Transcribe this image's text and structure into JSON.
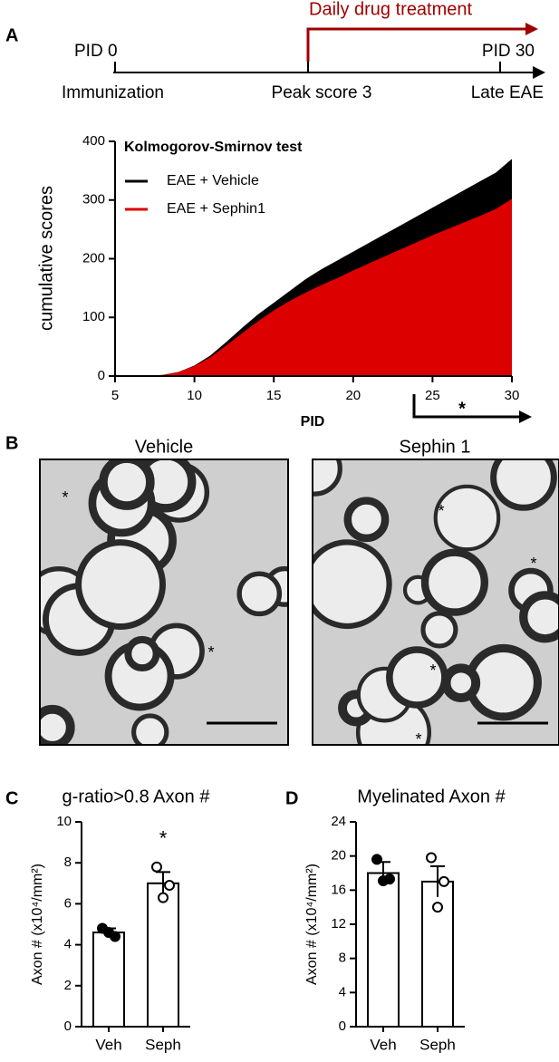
{
  "panels": [
    "A",
    "B",
    "C",
    "D"
  ],
  "timeline": {
    "start_label": "PID 0",
    "end_label": "PID 30",
    "events": [
      "Immunization",
      "Peak score 3",
      "Late EAE"
    ],
    "treatment": "Daily drug treatment"
  },
  "micrographs": [
    {
      "title": "Vehicle",
      "marks": [
        "*",
        "*"
      ]
    },
    {
      "title": "Sephin 1",
      "marks": [
        "*",
        "*",
        "*",
        "*"
      ]
    }
  ],
  "chart_data": [
    {
      "type": "area",
      "title": "Kolmogorov-Smirnov test",
      "x_label": "PID",
      "y_label": "cumulative scores",
      "annotation": "*",
      "x": [
        5,
        6,
        7,
        8,
        9,
        10,
        11,
        12,
        13,
        14,
        15,
        16,
        17,
        18,
        19,
        20,
        21,
        22,
        23,
        24,
        25,
        26,
        27,
        28,
        29,
        30
      ],
      "series": [
        {
          "name": "EAE + Vehicle",
          "color": "#000000",
          "values": [
            0,
            0,
            0,
            2,
            7,
            18,
            35,
            58,
            82,
            105,
            125,
            145,
            165,
            182,
            197,
            212,
            227,
            242,
            257,
            272,
            287,
            302,
            317,
            332,
            347,
            370
          ]
        },
        {
          "name": "EAE + Sephin1",
          "color": "#dd0000",
          "values": [
            0,
            0,
            0,
            2,
            7,
            17,
            32,
            52,
            73,
            93,
            112,
            128,
            142,
            155,
            167,
            180,
            192,
            204,
            216,
            228,
            240,
            251,
            262,
            273,
            285,
            302
          ]
        }
      ],
      "xlim": [
        5,
        30
      ],
      "xticks": [
        5,
        10,
        15,
        20,
        25,
        30
      ],
      "ylim": [
        0,
        400
      ],
      "yticks": [
        0,
        100,
        200,
        300,
        400
      ]
    },
    {
      "type": "bar",
      "title": "g-ratio>0.8 Axon #",
      "y_label": "Axon # (x10⁴/mm²)",
      "annotation": "*",
      "categories": [
        "Veh",
        "Seph"
      ],
      "values": [
        4.6,
        7.0
      ],
      "errors": [
        0.2,
        0.55
      ],
      "points": [
        [
          4.8,
          4.4,
          4.6
        ],
        [
          7.8,
          6.9,
          6.3
        ]
      ],
      "marker_fill": [
        "#000000",
        "#ffffff"
      ],
      "ylim": [
        0,
        10
      ],
      "yticks": [
        0,
        2,
        4,
        6,
        8,
        10
      ]
    },
    {
      "type": "bar",
      "title": "Myelinated Axon #",
      "y_label": "Axon # (x10⁴/mm²)",
      "categories": [
        "Veh",
        "Seph"
      ],
      "values": [
        18,
        17
      ],
      "errors": [
        1.3,
        1.8
      ],
      "points": [
        [
          19.6,
          17.3,
          17.1
        ],
        [
          19.8,
          17.0,
          14.0
        ]
      ],
      "marker_fill": [
        "#000000",
        "#ffffff"
      ],
      "ylim": [
        0,
        24
      ],
      "yticks": [
        0,
        4,
        8,
        12,
        16,
        20,
        24
      ]
    }
  ]
}
